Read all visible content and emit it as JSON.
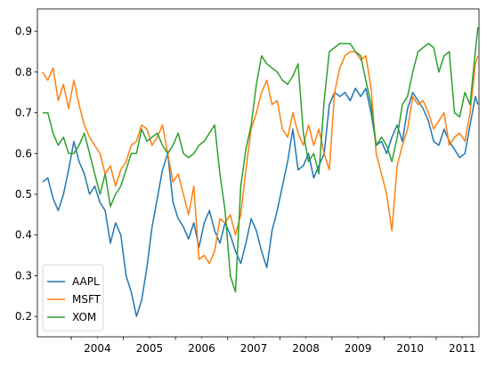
{
  "chart_data": {
    "type": "line",
    "title": "",
    "xlabel": "",
    "ylabel": "",
    "xlim": [
      2003.35,
      2011.82
    ],
    "ylim": [
      0.15,
      0.955
    ],
    "x_major_ticks": [
      2004,
      2005,
      2006,
      2007,
      2008,
      2009,
      2010,
      2011
    ],
    "x_tick_labels": [
      "2004",
      "2005",
      "2006",
      "2007",
      "2008",
      "2009",
      "2010",
      "2011"
    ],
    "y_ticks": [
      0.2,
      0.3,
      0.4,
      0.5,
      0.6,
      0.7,
      0.8,
      0.9
    ],
    "y_tick_labels": [
      "0.2",
      "0.3",
      "0.4",
      "0.5",
      "0.6",
      "0.7",
      "0.8",
      "0.9"
    ],
    "grid": false,
    "legend": {
      "position": "lower-left",
      "entries": [
        "AAPL",
        "MSFT",
        "XOM"
      ]
    },
    "series": [
      {
        "name": "AAPL",
        "color": "#1f77b4",
        "x": [
          2003.45,
          2003.55,
          2003.65,
          2003.75,
          2003.85,
          2003.95,
          2004.05,
          2004.15,
          2004.25,
          2004.35,
          2004.45,
          2004.55,
          2004.65,
          2004.75,
          2004.85,
          2004.95,
          2005.05,
          2005.15,
          2005.25,
          2005.35,
          2005.45,
          2005.55,
          2005.65,
          2005.75,
          2005.85,
          2005.95,
          2006.05,
          2006.15,
          2006.25,
          2006.35,
          2006.45,
          2006.55,
          2006.65,
          2006.75,
          2006.85,
          2006.95,
          2007.05,
          2007.15,
          2007.25,
          2007.35,
          2007.45,
          2007.55,
          2007.65,
          2007.75,
          2007.85,
          2007.95,
          2008.05,
          2008.15,
          2008.25,
          2008.35,
          2008.45,
          2008.55,
          2008.65,
          2008.75,
          2008.85,
          2008.95,
          2009.05,
          2009.15,
          2009.25,
          2009.35,
          2009.45,
          2009.55,
          2009.65,
          2009.75,
          2009.85,
          2009.95,
          2010.05,
          2010.15,
          2010.25,
          2010.35,
          2010.45,
          2010.55,
          2010.65,
          2010.75,
          2010.85,
          2010.95,
          2011.05,
          2011.15,
          2011.25,
          2011.35,
          2011.45,
          2011.55,
          2011.65,
          2011.75,
          2011.8
        ],
        "values": [
          0.53,
          0.54,
          0.49,
          0.46,
          0.5,
          0.56,
          0.63,
          0.58,
          0.55,
          0.5,
          0.52,
          0.48,
          0.46,
          0.38,
          0.43,
          0.4,
          0.3,
          0.26,
          0.2,
          0.24,
          0.32,
          0.42,
          0.49,
          0.56,
          0.6,
          0.48,
          0.44,
          0.42,
          0.39,
          0.43,
          0.37,
          0.43,
          0.46,
          0.41,
          0.38,
          0.43,
          0.4,
          0.36,
          0.33,
          0.38,
          0.44,
          0.41,
          0.36,
          0.32,
          0.41,
          0.46,
          0.52,
          0.58,
          0.66,
          0.56,
          0.57,
          0.6,
          0.54,
          0.57,
          0.6,
          0.72,
          0.75,
          0.74,
          0.75,
          0.73,
          0.76,
          0.74,
          0.76,
          0.7,
          0.62,
          0.63,
          0.6,
          0.64,
          0.67,
          0.63,
          0.71,
          0.75,
          0.73,
          0.71,
          0.68,
          0.63,
          0.62,
          0.66,
          0.63,
          0.61,
          0.59,
          0.6,
          0.67,
          0.74,
          0.72
        ]
      },
      {
        "name": "MSFT",
        "color": "#ff7f0e",
        "x": [
          2003.45,
          2003.55,
          2003.65,
          2003.75,
          2003.85,
          2003.95,
          2004.05,
          2004.15,
          2004.25,
          2004.35,
          2004.45,
          2004.55,
          2004.65,
          2004.75,
          2004.85,
          2004.95,
          2005.05,
          2005.15,
          2005.25,
          2005.35,
          2005.45,
          2005.55,
          2005.65,
          2005.75,
          2005.85,
          2005.95,
          2006.05,
          2006.15,
          2006.25,
          2006.35,
          2006.45,
          2006.55,
          2006.65,
          2006.75,
          2006.85,
          2006.95,
          2007.05,
          2007.15,
          2007.25,
          2007.35,
          2007.45,
          2007.55,
          2007.65,
          2007.75,
          2007.85,
          2007.95,
          2008.05,
          2008.15,
          2008.25,
          2008.35,
          2008.45,
          2008.55,
          2008.65,
          2008.75,
          2008.85,
          2008.95,
          2009.05,
          2009.15,
          2009.25,
          2009.35,
          2009.45,
          2009.55,
          2009.65,
          2009.75,
          2009.85,
          2009.95,
          2010.05,
          2010.15,
          2010.25,
          2010.35,
          2010.45,
          2010.55,
          2010.65,
          2010.75,
          2010.85,
          2010.95,
          2011.05,
          2011.15,
          2011.25,
          2011.35,
          2011.45,
          2011.55,
          2011.65,
          2011.75,
          2011.8
        ],
        "values": [
          0.8,
          0.78,
          0.81,
          0.73,
          0.77,
          0.71,
          0.78,
          0.72,
          0.67,
          0.64,
          0.62,
          0.6,
          0.55,
          0.57,
          0.52,
          0.56,
          0.58,
          0.62,
          0.63,
          0.67,
          0.66,
          0.62,
          0.64,
          0.67,
          0.6,
          0.53,
          0.55,
          0.5,
          0.45,
          0.52,
          0.34,
          0.35,
          0.33,
          0.36,
          0.44,
          0.43,
          0.45,
          0.4,
          0.45,
          0.56,
          0.66,
          0.7,
          0.75,
          0.78,
          0.72,
          0.73,
          0.66,
          0.64,
          0.7,
          0.65,
          0.62,
          0.67,
          0.62,
          0.66,
          0.6,
          0.56,
          0.75,
          0.81,
          0.84,
          0.85,
          0.85,
          0.83,
          0.84,
          0.76,
          0.6,
          0.55,
          0.5,
          0.41,
          0.57,
          0.62,
          0.66,
          0.74,
          0.72,
          0.73,
          0.7,
          0.66,
          0.68,
          0.7,
          0.62,
          0.64,
          0.65,
          0.63,
          0.7,
          0.82,
          0.84
        ]
      },
      {
        "name": "XOM",
        "color": "#2ca02c",
        "x": [
          2003.45,
          2003.55,
          2003.65,
          2003.75,
          2003.85,
          2003.95,
          2004.05,
          2004.15,
          2004.25,
          2004.35,
          2004.45,
          2004.55,
          2004.65,
          2004.75,
          2004.85,
          2004.95,
          2005.05,
          2005.15,
          2005.25,
          2005.35,
          2005.45,
          2005.55,
          2005.65,
          2005.75,
          2005.85,
          2005.95,
          2006.05,
          2006.15,
          2006.25,
          2006.35,
          2006.45,
          2006.55,
          2006.65,
          2006.75,
          2006.85,
          2006.95,
          2007.05,
          2007.15,
          2007.25,
          2007.35,
          2007.45,
          2007.55,
          2007.65,
          2007.75,
          2007.85,
          2007.95,
          2008.05,
          2008.15,
          2008.25,
          2008.35,
          2008.45,
          2008.55,
          2008.65,
          2008.75,
          2008.85,
          2008.95,
          2009.05,
          2009.15,
          2009.25,
          2009.35,
          2009.45,
          2009.55,
          2009.65,
          2009.75,
          2009.85,
          2009.95,
          2010.05,
          2010.15,
          2010.25,
          2010.35,
          2010.45,
          2010.55,
          2010.65,
          2010.75,
          2010.85,
          2010.95,
          2011.05,
          2011.15,
          2011.25,
          2011.35,
          2011.45,
          2011.55,
          2011.65,
          2011.75,
          2011.8
        ],
        "values": [
          0.7,
          0.7,
          0.65,
          0.62,
          0.64,
          0.6,
          0.6,
          0.62,
          0.65,
          0.6,
          0.55,
          0.5,
          0.55,
          0.47,
          0.5,
          0.52,
          0.56,
          0.6,
          0.6,
          0.66,
          0.63,
          0.64,
          0.65,
          0.62,
          0.6,
          0.62,
          0.65,
          0.6,
          0.59,
          0.6,
          0.62,
          0.63,
          0.65,
          0.67,
          0.55,
          0.46,
          0.3,
          0.26,
          0.52,
          0.61,
          0.67,
          0.77,
          0.84,
          0.82,
          0.81,
          0.8,
          0.78,
          0.77,
          0.79,
          0.82,
          0.65,
          0.58,
          0.6,
          0.55,
          0.73,
          0.85,
          0.86,
          0.87,
          0.87,
          0.87,
          0.85,
          0.84,
          0.78,
          0.72,
          0.62,
          0.64,
          0.62,
          0.58,
          0.64,
          0.72,
          0.74,
          0.8,
          0.85,
          0.86,
          0.87,
          0.86,
          0.8,
          0.84,
          0.85,
          0.7,
          0.69,
          0.75,
          0.72,
          0.85,
          0.91
        ]
      }
    ]
  }
}
